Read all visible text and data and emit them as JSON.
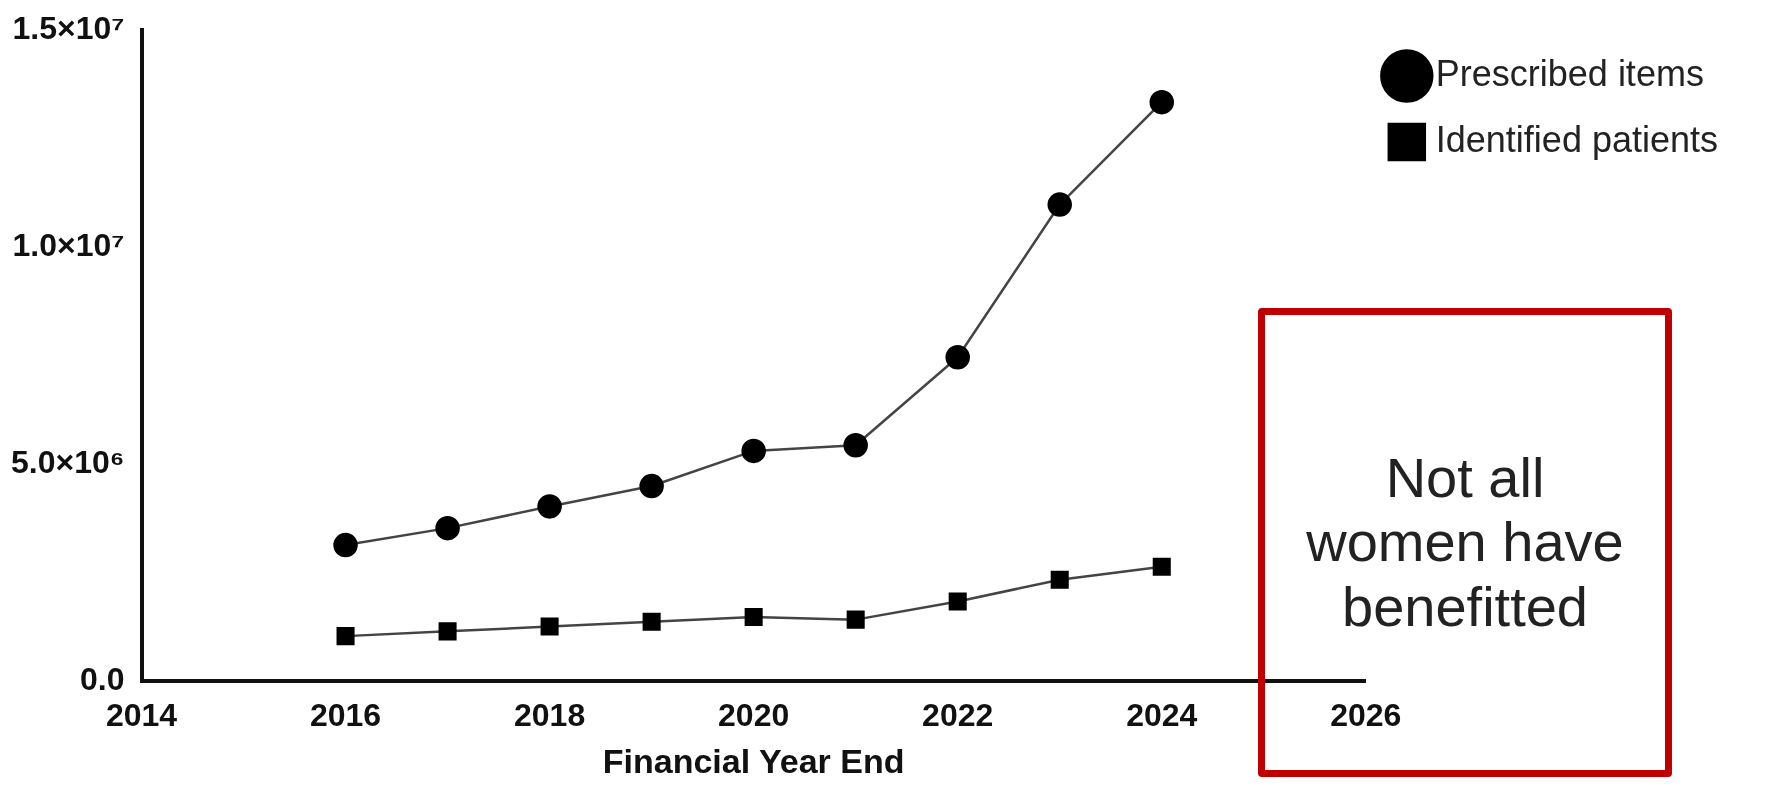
{
  "chart_data": {
    "type": "line",
    "xlabel": "Financial Year End",
    "x": [
      2016,
      2017,
      2018,
      2019,
      2020,
      2021,
      2022,
      2023,
      2024
    ],
    "series": [
      {
        "name": "Prescribed items",
        "color": "#000000",
        "marker": "circle",
        "values": [
          3130000,
          3520000,
          4020000,
          4490000,
          5300000,
          5430000,
          7460000,
          10980000,
          13340000
        ]
      },
      {
        "name": "Identified patients",
        "color": "#000000",
        "marker": "square",
        "values": [
          1030000,
          1140000,
          1250000,
          1360000,
          1470000,
          1410000,
          1830000,
          2330000,
          2630000
        ]
      }
    ],
    "xlim": [
      2014,
      2026
    ],
    "xticks": [
      2014,
      2016,
      2018,
      2020,
      2022,
      2024,
      2026
    ],
    "ylim": [
      0,
      15000000
    ],
    "yticks": [
      {
        "value": 0,
        "label": "0.0"
      },
      {
        "value": 5000000,
        "label": "5.0×10⁶"
      },
      {
        "value": 10000000,
        "label": "1.0×10⁷"
      },
      {
        "value": 15000000,
        "label": "1.5×10⁷"
      }
    ],
    "grid": false,
    "legend": "top right",
    "line_style": "solid",
    "annotations": [
      "Not all women have benefitted"
    ]
  }
}
